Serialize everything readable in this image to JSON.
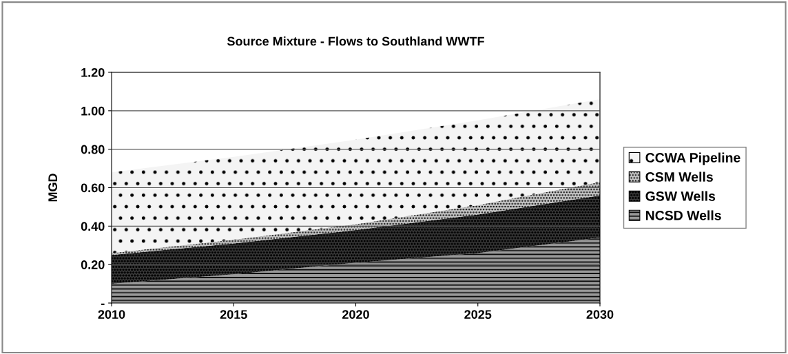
{
  "chart_data": {
    "type": "area",
    "stacked": true,
    "title": "Source Mixture - Flows to Southland WWTF",
    "ylabel": "MGD",
    "x": [
      2010,
      2015,
      2020,
      2025,
      2030
    ],
    "series": [
      {
        "name": "NCSD Wells",
        "color": "#9a9a9a",
        "values": [
          0.1,
          0.15,
          0.21,
          0.26,
          0.34
        ]
      },
      {
        "name": "GSW Wells",
        "color": "#404040",
        "values": [
          0.15,
          0.16,
          0.17,
          0.2,
          0.22
        ]
      },
      {
        "name": "CSM Wells",
        "color": "#c8c8c8",
        "values": [
          0.01,
          0.02,
          0.03,
          0.05,
          0.07
        ]
      },
      {
        "name": "CCWA Pipeline",
        "color": "#f4f4f4",
        "values": [
          0.42,
          0.43,
          0.44,
          0.44,
          0.43
        ]
      }
    ],
    "xlim": [
      2010,
      2030
    ],
    "xticks": [
      2010,
      2015,
      2020,
      2025,
      2030
    ],
    "ylim": [
      0,
      1.2
    ],
    "yticks": [
      {
        "value": 0,
        "label": "-"
      },
      {
        "value": 0.2,
        "label": "0.20"
      },
      {
        "value": 0.4,
        "label": "0.40"
      },
      {
        "value": 0.6,
        "label": "0.60"
      },
      {
        "value": 0.8,
        "label": "0.80"
      },
      {
        "value": 1.0,
        "label": "1.00"
      },
      {
        "value": 1.2,
        "label": "1.20"
      }
    ],
    "grid": "y",
    "legend": "right"
  }
}
